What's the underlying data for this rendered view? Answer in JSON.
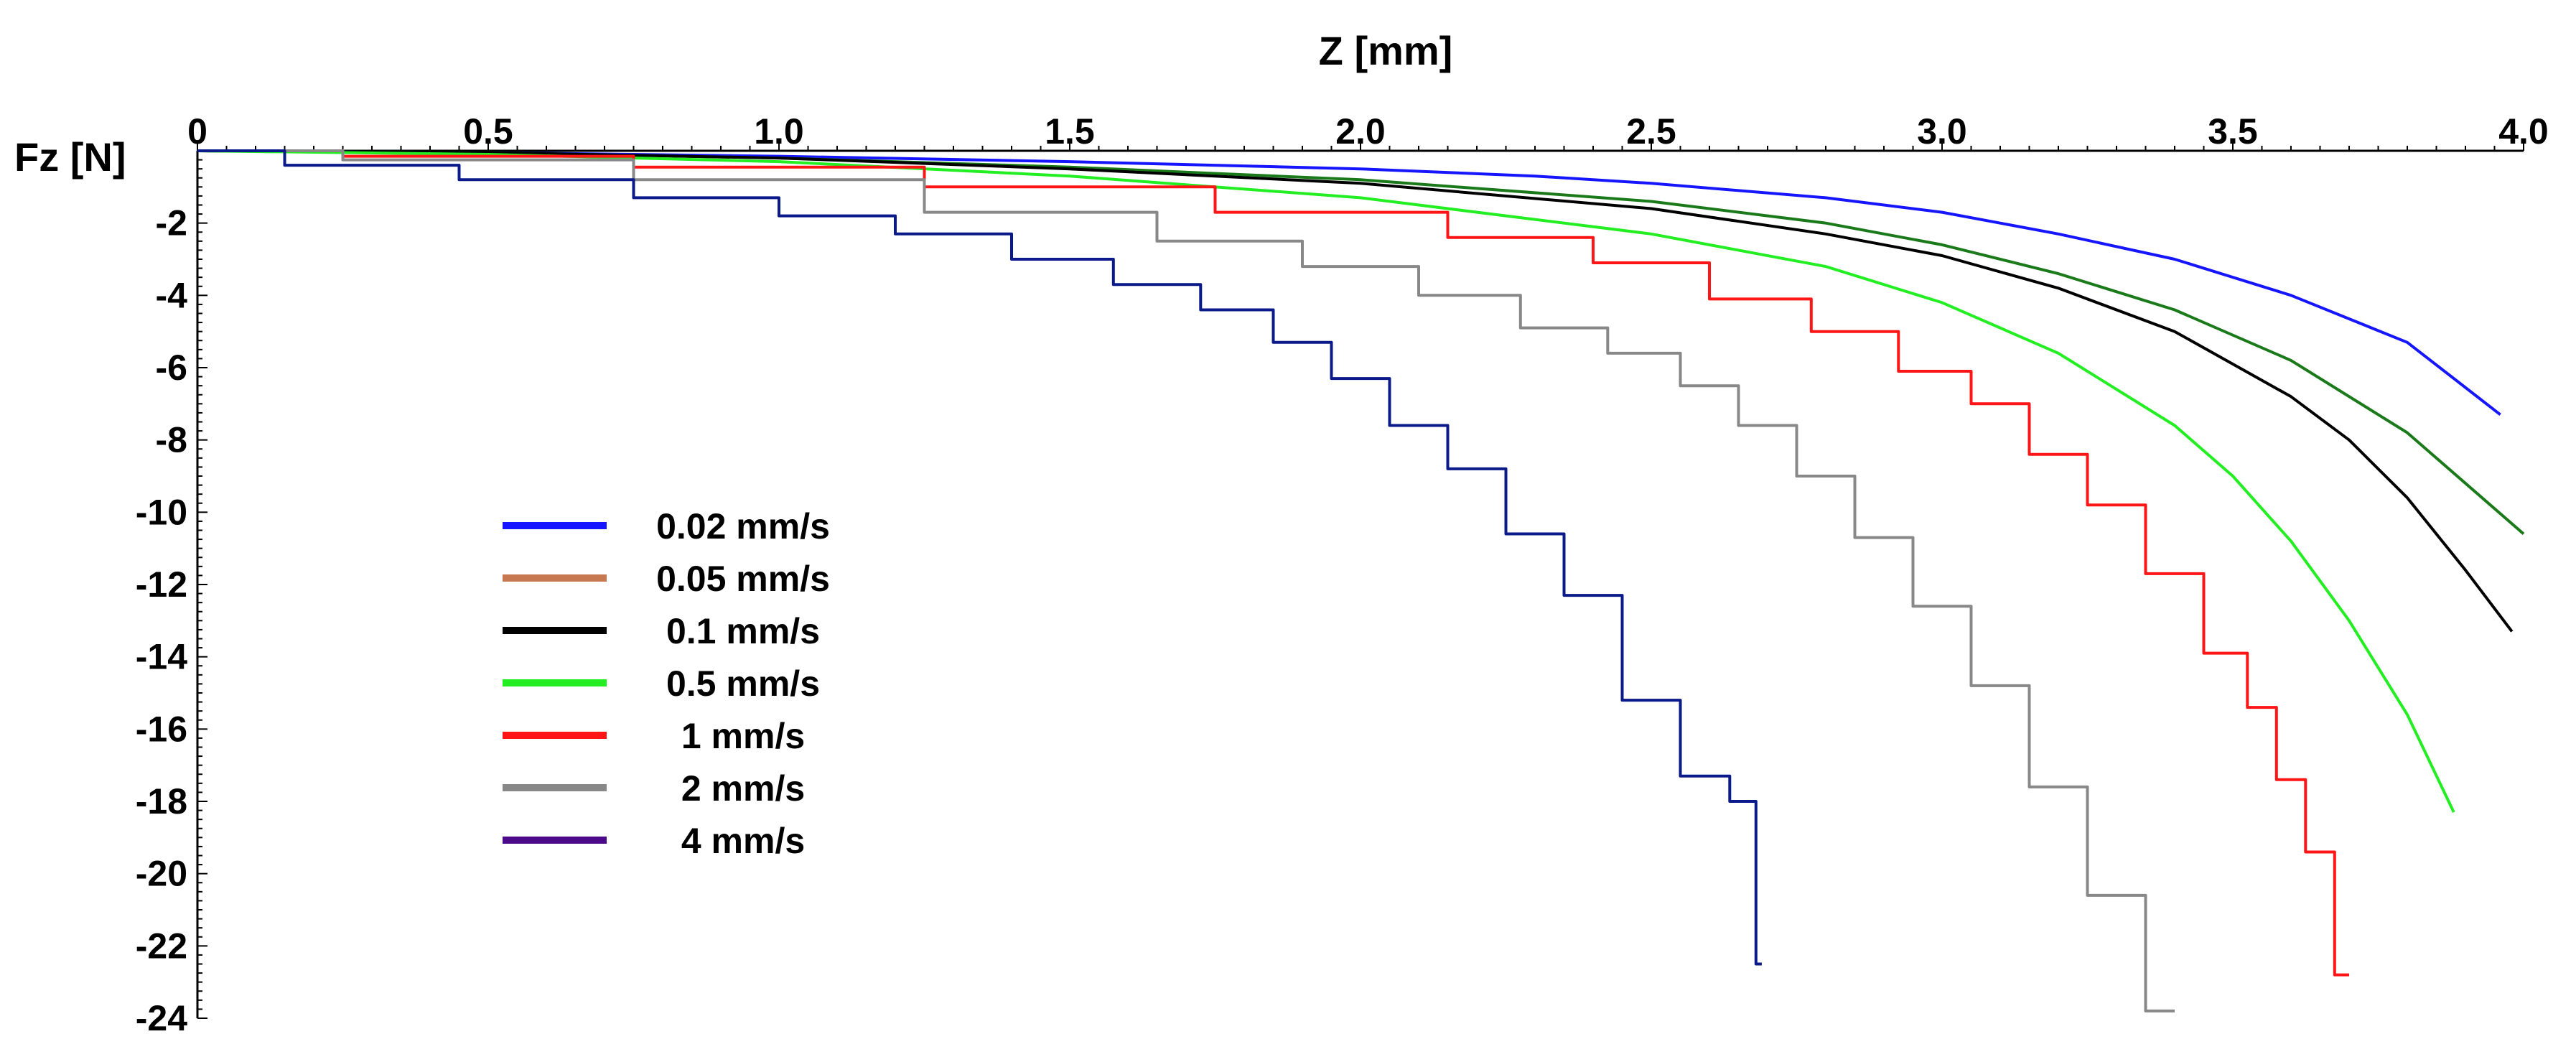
{
  "chart_data": {
    "type": "line",
    "title": "",
    "xlabel": "Z [mm]",
    "ylabel": "Fz [N]",
    "xlim": [
      0,
      4.0
    ],
    "ylim": [
      -24,
      0
    ],
    "x_axis_position": "top",
    "xticks": [
      "0",
      "0.5",
      "1.0",
      "1.5",
      "2.0",
      "2.5",
      "3.0",
      "3.5",
      "4.0"
    ],
    "yticks": [
      "-2",
      "-4",
      "-6",
      "-8",
      "-10",
      "-12",
      "-14",
      "-16",
      "-18",
      "-20",
      "-22",
      "-24"
    ],
    "legend_position": "left-center",
    "series": [
      {
        "name": "0.02 mm/s",
        "legend_color": "#1515ff",
        "color": "#1515ff",
        "step": false,
        "x": [
          0,
          0.5,
          1.0,
          1.5,
          2.0,
          2.3,
          2.5,
          2.8,
          3.0,
          3.2,
          3.4,
          3.6,
          3.8,
          3.96
        ],
        "y": [
          0,
          -0.05,
          -0.15,
          -0.3,
          -0.5,
          -0.7,
          -0.9,
          -1.3,
          -1.7,
          -2.3,
          -3.0,
          -4.0,
          -5.3,
          -7.3
        ]
      },
      {
        "name": "0.05 mm/s",
        "legend_color": "#c87850",
        "color": "#1a7a1a",
        "step": false,
        "x": [
          0,
          0.5,
          1.0,
          1.5,
          2.0,
          2.5,
          2.8,
          3.0,
          3.2,
          3.4,
          3.6,
          3.8,
          4.0
        ],
        "y": [
          0,
          -0.05,
          -0.2,
          -0.45,
          -0.8,
          -1.4,
          -2.0,
          -2.6,
          -3.4,
          -4.4,
          -5.8,
          -7.8,
          -10.6
        ]
      },
      {
        "name": "0.1 mm/s",
        "legend_color": "#000000",
        "color": "#000000",
        "step": false,
        "x": [
          0,
          0.5,
          1.0,
          1.5,
          2.0,
          2.5,
          2.8,
          3.0,
          3.2,
          3.4,
          3.6,
          3.7,
          3.8,
          3.9,
          3.98
        ],
        "y": [
          0,
          -0.05,
          -0.2,
          -0.5,
          -0.9,
          -1.6,
          -2.3,
          -2.9,
          -3.8,
          -5.0,
          -6.8,
          -8.0,
          -9.6,
          -11.6,
          -13.3
        ]
      },
      {
        "name": "0.5 mm/s",
        "legend_color": "#22ee22",
        "color": "#22ee22",
        "step": false,
        "x": [
          0,
          0.5,
          1.0,
          1.5,
          2.0,
          2.5,
          2.8,
          3.0,
          3.2,
          3.4,
          3.5,
          3.6,
          3.7,
          3.8,
          3.88
        ],
        "y": [
          0,
          -0.1,
          -0.3,
          -0.7,
          -1.3,
          -2.3,
          -3.2,
          -4.2,
          -5.6,
          -7.6,
          -9.0,
          -10.8,
          -13.0,
          -15.6,
          -18.3
        ]
      },
      {
        "name": "1 mm/s",
        "legend_color": "#ff1515",
        "color": "#ff1515",
        "step": true,
        "x": [
          0,
          0.5,
          1.0,
          1.5,
          2.0,
          2.3,
          2.5,
          2.7,
          2.85,
          3.0,
          3.1,
          3.2,
          3.3,
          3.4,
          3.5,
          3.55,
          3.6,
          3.65,
          3.7
        ],
        "y": [
          0,
          -0.15,
          -0.45,
          -1.0,
          -1.7,
          -2.4,
          -3.1,
          -4.1,
          -5.0,
          -6.1,
          -7.0,
          -8.4,
          -9.8,
          -11.7,
          -13.9,
          -15.4,
          -17.4,
          -19.4,
          -22.8
        ]
      },
      {
        "name": "2 mm/s",
        "legend_color": "#888888",
        "color": "#888888",
        "step": true,
        "x": [
          0,
          0.5,
          1.0,
          1.5,
          1.8,
          2.0,
          2.2,
          2.35,
          2.5,
          2.6,
          2.7,
          2.8,
          2.9,
          3.0,
          3.1,
          3.2,
          3.3,
          3.4
        ],
        "y": [
          0,
          -0.25,
          -0.8,
          -1.7,
          -2.5,
          -3.2,
          -4.0,
          -4.9,
          -5.6,
          -6.5,
          -7.6,
          -9.0,
          -10.7,
          -12.6,
          -14.8,
          -17.6,
          -20.6,
          -23.8
        ]
      },
      {
        "name": "4 mm/s",
        "legend_color": "#4a0a8a",
        "color": "#0a1a8a",
        "step": true,
        "x": [
          0,
          0.3,
          0.6,
          0.9,
          1.1,
          1.3,
          1.5,
          1.65,
          1.8,
          1.9,
          2.0,
          2.1,
          2.2,
          2.3,
          2.4,
          2.5,
          2.6,
          2.67,
          2.69
        ],
        "y": [
          0,
          -0.4,
          -0.8,
          -1.3,
          -1.8,
          -2.3,
          -3.0,
          -3.7,
          -4.4,
          -5.3,
          -6.3,
          -7.6,
          -8.8,
          -10.6,
          -12.3,
          -15.2,
          -17.3,
          -18.0,
          -22.5
        ]
      }
    ]
  }
}
